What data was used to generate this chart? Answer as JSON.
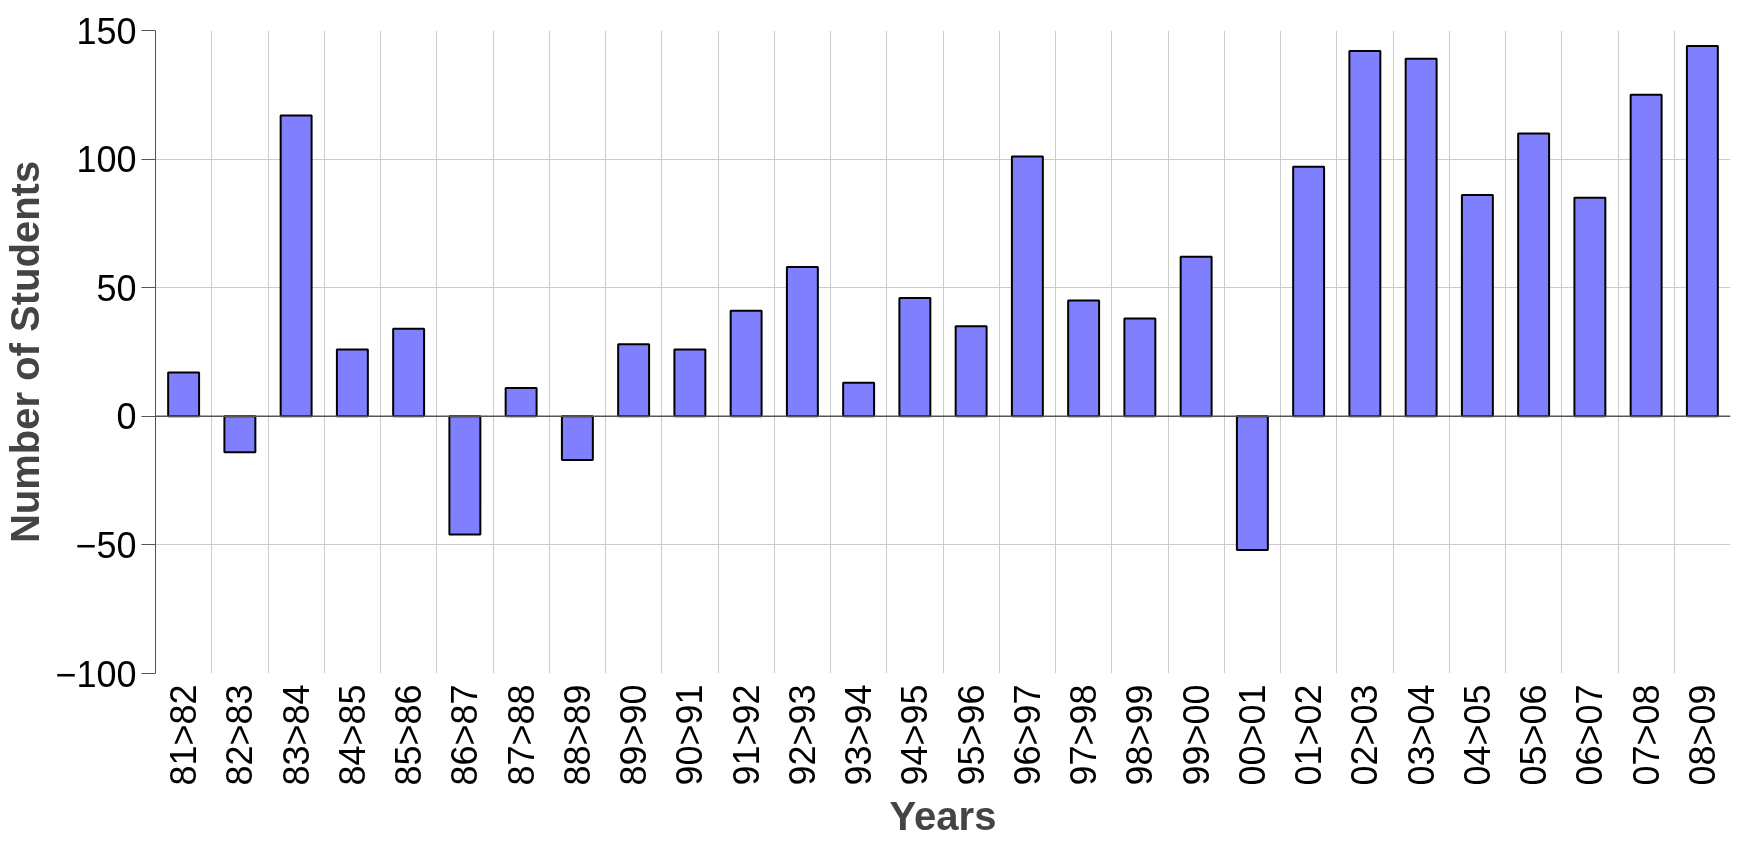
{
  "chart_data": {
    "type": "bar",
    "xlabel": "Years",
    "ylabel": "Number of Students",
    "categories": [
      "81>82",
      "82>83",
      "83>84",
      "84>85",
      "85>86",
      "86>87",
      "87>88",
      "88>89",
      "89>90",
      "90>91",
      "91>92",
      "92>93",
      "93>94",
      "94>95",
      "95>96",
      "96>97",
      "97>98",
      "98>99",
      "99>00",
      "00>01",
      "01>02",
      "02>03",
      "03>04",
      "04>05",
      "05>06",
      "06>07",
      "07>08",
      "08>09"
    ],
    "values": [
      17,
      -14,
      117,
      26,
      34,
      -46,
      11,
      -17,
      28,
      26,
      41,
      58,
      13,
      46,
      35,
      101,
      45,
      38,
      62,
      -52,
      97,
      142,
      139,
      86,
      110,
      85,
      125,
      144
    ],
    "color": "#8080ff",
    "ylim": [
      -100,
      150
    ],
    "yticks": [
      -100,
      -50,
      0,
      50,
      100,
      150
    ],
    "grid": true
  }
}
